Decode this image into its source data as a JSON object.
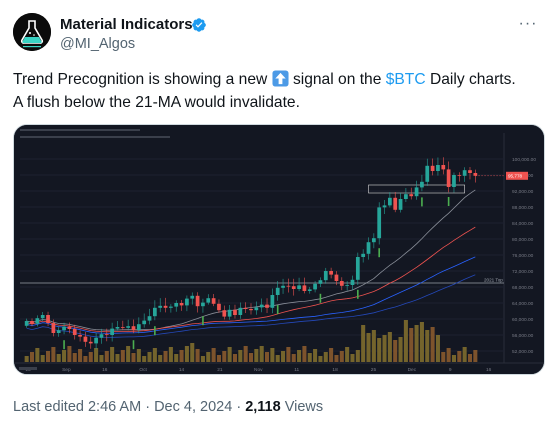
{
  "author": {
    "name": "Material Indicators",
    "handle": "@MI_Algos",
    "avatar_icon": "flask-logo-icon",
    "verified_color": "#1d9bf0"
  },
  "tweet": {
    "text_1": "Trend Precognition is showing a new",
    "emoji_icon": "up-arrow-emoji-icon",
    "text_2": "signal on the",
    "cashtag": "$BTC",
    "text_3": "Daily charts.",
    "text_4": "A flush below the 21-MA would invalidate."
  },
  "meta": {
    "edited_label": "Last edited 2:46 AM",
    "date": "Dec 4, 2024",
    "views_count": "2,118",
    "views_label": "Views",
    "separator": "·"
  },
  "chart_data": {
    "type": "candlestick",
    "x_labels": [
      "15",
      "Sep",
      "16",
      "Oct",
      "14",
      "21",
      "Nov",
      "11",
      "18",
      "25",
      "Dec",
      "9",
      "16"
    ],
    "y_ticks": [
      52000,
      56000,
      60000,
      64000,
      68000,
      72000,
      76000,
      80000,
      84000,
      88000,
      92000,
      96000,
      100000
    ],
    "y_range": [
      49000,
      104000
    ],
    "last_price_badge": "95,778",
    "level_label": "2021 Top",
    "level_value": 69000,
    "support_box": [
      91500,
      93500
    ],
    "colors": {
      "up": "#26a69a",
      "down": "#ef5350",
      "ma_red": "#ef5350",
      "ma_blue": "#2962ff",
      "volume": "#8a7a3a"
    },
    "candles_close": [
      59500,
      58800,
      60200,
      61000,
      59000,
      56500,
      57200,
      58100,
      57500,
      56000,
      55600,
      54300,
      53900,
      55300,
      56200,
      56000,
      57600,
      58000,
      57800,
      58200,
      57200,
      58700,
      59600,
      60700,
      62800,
      63300,
      62800,
      63100,
      64000,
      63400,
      65100,
      65800,
      63200,
      64100,
      65200,
      63800,
      62200,
      60600,
      62300,
      61000,
      62800,
      62500,
      62200,
      62900,
      63600,
      62800,
      66000,
      67800,
      68300,
      68200,
      67500,
      68400,
      67000,
      67400,
      68800,
      69700,
      72000,
      71100,
      69500,
      68300,
      68500,
      69800,
      75500,
      76300,
      79200,
      80200,
      87900,
      88400,
      90300,
      87300,
      90000,
      91200,
      90700,
      92900,
      94300,
      98300,
      97000,
      98500,
      97400,
      93000,
      96000,
      95800,
      97200,
      96500,
      95800
    ],
    "candles_open": [
      58300,
      59500,
      58800,
      60200,
      61000,
      59000,
      56500,
      57200,
      58100,
      57500,
      56000,
      55600,
      54300,
      53900,
      55300,
      56200,
      56000,
      57600,
      58000,
      57800,
      58200,
      57200,
      58700,
      59600,
      60700,
      62800,
      63300,
      62800,
      63100,
      64000,
      63400,
      65100,
      65800,
      63200,
      64100,
      65200,
      63800,
      62200,
      60600,
      62300,
      61000,
      62800,
      62500,
      62200,
      62900,
      63600,
      62800,
      66000,
      67800,
      68300,
      68200,
      67500,
      68400,
      67000,
      67400,
      68800,
      69700,
      72000,
      71100,
      69500,
      68300,
      68500,
      69800,
      75500,
      76300,
      79200,
      80200,
      87900,
      88400,
      90300,
      87300,
      90000,
      91200,
      90700,
      92900,
      94300,
      98300,
      97000,
      98500,
      97400,
      93000,
      96000,
      95800,
      97200,
      96500
    ]
  }
}
